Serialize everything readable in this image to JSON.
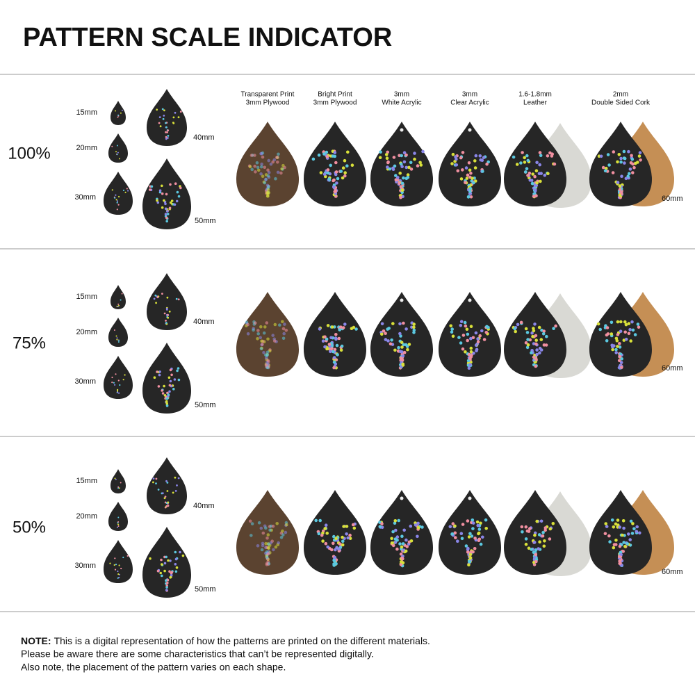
{
  "title": "PATTERN SCALE INDICATOR",
  "materials": [
    [
      "Transparent Print",
      "3mm Plywood"
    ],
    [
      "Bright Print",
      "3mm Plywood"
    ],
    [
      "3mm",
      "White Acrylic"
    ],
    [
      "3mm",
      "Clear Acrylic"
    ],
    [
      "1.6-1.8mm",
      "Leather"
    ],
    [
      "2mm",
      "Double Sided Cork"
    ]
  ],
  "sections": [
    {
      "scale": "100%",
      "sizes": [
        "15mm",
        "20mm",
        "30mm",
        "40mm",
        "50mm"
      ],
      "large_size": "60mm"
    },
    {
      "scale": "75%",
      "sizes": [
        "15mm",
        "20mm",
        "30mm",
        "40mm",
        "50mm"
      ],
      "large_size": "60mm"
    },
    {
      "scale": "50%",
      "sizes": [
        "15mm",
        "20mm",
        "30mm",
        "40mm",
        "50mm"
      ],
      "large_size": "60mm"
    }
  ],
  "note": {
    "label": "NOTE:",
    "lines": [
      "This is a digital representation of how the patterns are printed on the different materials.",
      "Please be aware there are some characteristics that can’t be represented digitally.",
      "Also note, the placement of the pattern varies on each shape."
    ]
  }
}
